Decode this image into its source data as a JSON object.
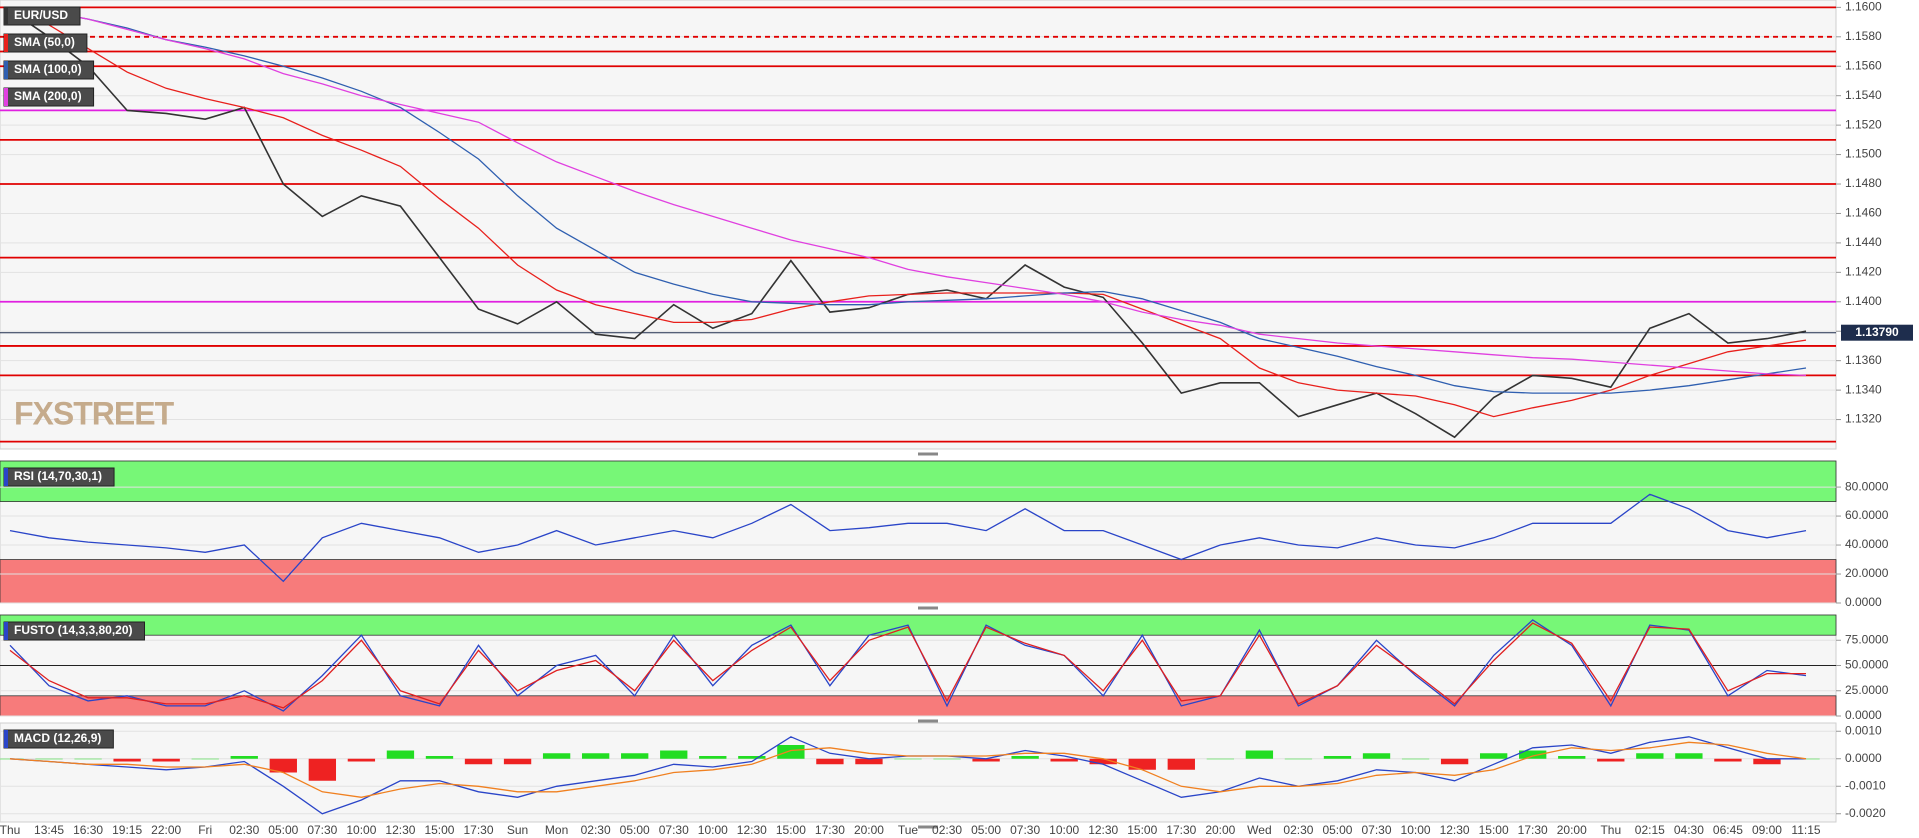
{
  "chart_data": [
    {
      "type": "line",
      "ylim": [
        1.13,
        1.1605
      ],
      "yticks": [
        {
          "value": 1.16,
          "label": "1.1600"
        },
        {
          "value": 1.158,
          "label": "1.1580"
        },
        {
          "value": 1.156,
          "label": "1.1560"
        },
        {
          "value": 1.154,
          "label": "1.1540"
        },
        {
          "value": 1.152,
          "label": "1.1520"
        },
        {
          "value": 1.15,
          "label": "1.1500"
        },
        {
          "value": 1.148,
          "label": "1.1480"
        },
        {
          "value": 1.146,
          "label": "1.1460"
        },
        {
          "value": 1.144,
          "label": "1.1440"
        },
        {
          "value": 1.142,
          "label": "1.1420"
        },
        {
          "value": 1.14,
          "label": "1.1400"
        },
        {
          "value": 1.138,
          "label": "1.1380"
        },
        {
          "value": 1.136,
          "label": "1.1360"
        },
        {
          "value": 1.134,
          "label": "1.1340"
        },
        {
          "value": 1.132,
          "label": "1.1320"
        }
      ],
      "grid": true,
      "watermark": "FXSTREET",
      "last_price": {
        "value": 1.1379,
        "label": "1.13790",
        "color": "#1e2d4d"
      },
      "levels": [
        {
          "value": 1.16,
          "color": "#e00000"
        },
        {
          "value": 1.158,
          "color": "#e00000",
          "style": "dashed"
        },
        {
          "value": 1.157,
          "color": "#e00000"
        },
        {
          "value": 1.156,
          "color": "#e00000"
        },
        {
          "value": 1.153,
          "color": "#e020e0"
        },
        {
          "value": 1.151,
          "color": "#e00000"
        },
        {
          "value": 1.148,
          "color": "#e00000"
        },
        {
          "value": 1.143,
          "color": "#e00000"
        },
        {
          "value": 1.14,
          "color": "#e020e0"
        },
        {
          "value": 1.137,
          "color": "#e00000"
        },
        {
          "value": 1.135,
          "color": "#e00000"
        },
        {
          "value": 1.1305,
          "color": "#e00000"
        }
      ],
      "series": [
        {
          "name": "EUR/USD",
          "color": "#333333",
          "values": [
            1.1598,
            1.158,
            1.156,
            1.153,
            1.1528,
            1.1524,
            1.1532,
            1.148,
            1.1458,
            1.1472,
            1.1465,
            1.143,
            1.1395,
            1.1385,
            1.14,
            1.1378,
            1.1375,
            1.1398,
            1.1382,
            1.1392,
            1.1428,
            1.1393,
            1.1396,
            1.1405,
            1.1408,
            1.1402,
            1.1425,
            1.141,
            1.1403,
            1.1372,
            1.1338,
            1.1345,
            1.1345,
            1.1322,
            1.133,
            1.1338,
            1.1324,
            1.1308,
            1.1335,
            1.135,
            1.1348,
            1.1342,
            1.1382,
            1.1392,
            1.1372,
            1.1375,
            1.138
          ]
        },
        {
          "name": "SMA (50,0)",
          "color": "#e8201c",
          "values": [
            1.1595,
            1.1588,
            1.1572,
            1.1556,
            1.1545,
            1.1538,
            1.1532,
            1.1525,
            1.1513,
            1.1503,
            1.1492,
            1.147,
            1.145,
            1.1425,
            1.1408,
            1.1398,
            1.1392,
            1.1386,
            1.1386,
            1.1388,
            1.1395,
            1.14,
            1.1404,
            1.1405,
            1.1406,
            1.1406,
            1.1406,
            1.1406,
            1.1405,
            1.1395,
            1.1385,
            1.1375,
            1.1355,
            1.1345,
            1.134,
            1.1338,
            1.1336,
            1.133,
            1.1322,
            1.1328,
            1.1333,
            1.134,
            1.135,
            1.1358,
            1.1366,
            1.137,
            1.1374
          ]
        },
        {
          "name": "SMA (100,0)",
          "color": "#2f5fb0",
          "values": [
            1.16,
            1.1597,
            1.1592,
            1.1586,
            1.1578,
            1.1573,
            1.1567,
            1.156,
            1.1552,
            1.1543,
            1.1532,
            1.1515,
            1.1497,
            1.1472,
            1.145,
            1.1435,
            1.142,
            1.1412,
            1.1405,
            1.14,
            1.1399,
            1.1398,
            1.1398,
            1.14,
            1.1401,
            1.1402,
            1.1404,
            1.1406,
            1.1407,
            1.1402,
            1.1394,
            1.1386,
            1.1375,
            1.1369,
            1.1363,
            1.1356,
            1.135,
            1.1343,
            1.1339,
            1.1338,
            1.1338,
            1.1338,
            1.134,
            1.1343,
            1.1347,
            1.1351,
            1.1355
          ]
        },
        {
          "name": "SMA (200,0)",
          "color": "#e040e0",
          "values": [
            1.16,
            1.1597,
            1.1592,
            1.1585,
            1.1578,
            1.1572,
            1.1565,
            1.1555,
            1.1548,
            1.154,
            1.1534,
            1.1528,
            1.1522,
            1.1508,
            1.1495,
            1.1485,
            1.1475,
            1.1466,
            1.1458,
            1.145,
            1.1442,
            1.1436,
            1.143,
            1.1422,
            1.1417,
            1.1413,
            1.1409,
            1.1405,
            1.14,
            1.1393,
            1.1388,
            1.1384,
            1.1378,
            1.1375,
            1.1372,
            1.137,
            1.1368,
            1.1366,
            1.1364,
            1.1362,
            1.1361,
            1.1359,
            1.1357,
            1.1355,
            1.1353,
            1.1351,
            1.135
          ]
        }
      ]
    },
    {
      "type": "line",
      "title": "RSI (14,70,30,1)",
      "ylim": [
        0,
        98
      ],
      "yticks": [
        {
          "value": 0,
          "label": "0.0000"
        },
        {
          "value": 20,
          "label": "20.0000"
        },
        {
          "value": 40,
          "label": "40.0000"
        },
        {
          "value": 60,
          "label": "60.0000"
        },
        {
          "value": 80,
          "label": "80.0000"
        }
      ],
      "grid": true,
      "upper_band": 70,
      "upper_color": "#77f777",
      "lower_band": 30,
      "lower_color": "#f77b7b",
      "series": [
        {
          "color": "#2a45c8",
          "values": [
            50,
            45,
            42,
            40,
            38,
            35,
            40,
            15,
            45,
            55,
            50,
            45,
            35,
            40,
            50,
            40,
            45,
            50,
            45,
            55,
            68,
            50,
            52,
            55,
            55,
            50,
            65,
            50,
            50,
            40,
            30,
            40,
            45,
            40,
            38,
            45,
            40,
            38,
            45,
            55,
            55,
            55,
            75,
            65,
            50,
            45,
            50
          ]
        }
      ]
    },
    {
      "type": "line",
      "title": "FUSTO (14,3,3,80,20)",
      "ylim": [
        0,
        100
      ],
      "yticks": [
        {
          "value": 0,
          "label": "0.0000"
        },
        {
          "value": 25,
          "label": "25.0000"
        },
        {
          "value": 50,
          "label": "50.0000"
        },
        {
          "value": 75,
          "label": "75.0000"
        }
      ],
      "grid": true,
      "midline": 50,
      "upper_band": 80,
      "upper_color": "#77f777",
      "lower_band": 20,
      "lower_color": "#f77b7b",
      "series": [
        {
          "color": "#2a45c8",
          "values": [
            70,
            30,
            15,
            20,
            10,
            10,
            25,
            5,
            40,
            80,
            20,
            10,
            70,
            20,
            50,
            60,
            20,
            80,
            30,
            70,
            90,
            30,
            80,
            90,
            10,
            90,
            70,
            60,
            20,
            80,
            10,
            20,
            85,
            10,
            30,
            75,
            40,
            10,
            60,
            95,
            70,
            10,
            90,
            85,
            20,
            45,
            40
          ]
        },
        {
          "color": "#e02020",
          "values": [
            65,
            35,
            18,
            18,
            12,
            12,
            20,
            8,
            35,
            75,
            25,
            12,
            65,
            25,
            45,
            55,
            25,
            75,
            35,
            65,
            88,
            35,
            75,
            88,
            15,
            88,
            72,
            60,
            25,
            75,
            15,
            20,
            80,
            12,
            30,
            70,
            42,
            12,
            55,
            92,
            72,
            15,
            88,
            86,
            25,
            42,
            42
          ]
        }
      ]
    },
    {
      "type": "line",
      "title": "MACD (12,26,9)",
      "ylim": [
        -0.0023,
        0.0013
      ],
      "yticks": [
        {
          "value": 0.001,
          "label": "0.0010"
        },
        {
          "value": 0,
          "label": "0.0000"
        },
        {
          "value": -0.001,
          "label": "-0.0010"
        },
        {
          "value": -0.002,
          "label": "-0.0020"
        }
      ],
      "grid": true,
      "histogram": {
        "up_color": "#22dd22",
        "down_color": "#ee2222",
        "values": [
          0,
          0,
          0,
          -0.0001,
          -0.0001,
          0,
          0.0001,
          -0.0005,
          -0.0008,
          -0.0001,
          0.0003,
          0.0001,
          -0.0002,
          -0.0002,
          0.0002,
          0.0002,
          0.0002,
          0.0003,
          0.0001,
          0.0001,
          0.0005,
          -0.0002,
          -0.0002,
          0,
          0,
          -0.0001,
          0.0001,
          -0.0001,
          -0.0002,
          -0.0004,
          -0.0004,
          0,
          0.0003,
          0,
          0.0001,
          0.0002,
          0,
          -0.0002,
          0.0002,
          0.0003,
          0.0001,
          -0.0001,
          0.0002,
          0.0002,
          -0.0001,
          -0.0002,
          0
        ]
      },
      "series": [
        {
          "color": "#2a45c8",
          "values": [
            0,
            -0.0001,
            -0.0002,
            -0.0003,
            -0.0004,
            -0.0003,
            -0.0001,
            -0.001,
            -0.002,
            -0.0015,
            -0.0008,
            -0.0008,
            -0.0012,
            -0.0014,
            -0.001,
            -0.0008,
            -0.0006,
            -0.0002,
            -0.0003,
            -0.0001,
            0.0008,
            0.0002,
            0,
            0.0001,
            0.0001,
            0,
            0.0003,
            0.0001,
            -0.0002,
            -0.0008,
            -0.0014,
            -0.0012,
            -0.0007,
            -0.001,
            -0.0008,
            -0.0004,
            -0.0005,
            -0.0008,
            -0.0002,
            0.0004,
            0.0005,
            0.0002,
            0.0006,
            0.0008,
            0.0004,
            0,
            0
          ]
        },
        {
          "color": "#f08020",
          "values": [
            0,
            -0.0001,
            -0.0002,
            -0.0002,
            -0.0003,
            -0.0003,
            -0.0002,
            -0.0005,
            -0.0012,
            -0.0014,
            -0.0011,
            -0.0009,
            -0.001,
            -0.0012,
            -0.0012,
            -0.001,
            -0.0008,
            -0.0005,
            -0.0004,
            -0.0002,
            0.0003,
            0.0004,
            0.0002,
            0.0001,
            0.0001,
            0.0001,
            0.0002,
            0.0002,
            0,
            -0.0004,
            -0.001,
            -0.0012,
            -0.001,
            -0.001,
            -0.0009,
            -0.0006,
            -0.0005,
            -0.0006,
            -0.0004,
            0.0001,
            0.0004,
            0.0003,
            0.0004,
            0.0006,
            0.0005,
            0.0002,
            0
          ]
        }
      ],
      "categories": [
        "Thu",
        "13:45",
        "16:30",
        "19:15",
        "22:00",
        "Fri",
        "02:30",
        "05:00",
        "07:30",
        "10:00",
        "12:30",
        "15:00",
        "17:30",
        "Sun",
        "Mon",
        "02:30",
        "05:00",
        "07:30",
        "10:00",
        "12:30",
        "15:00",
        "17:30",
        "20:00",
        "Tue",
        "02:30",
        "05:00",
        "07:30",
        "10:00",
        "12:30",
        "15:00",
        "17:30",
        "20:00",
        "Wed",
        "02:30",
        "05:00",
        "07:30",
        "10:00",
        "12:30",
        "15:00",
        "17:30",
        "20:00",
        "Thu",
        "02:15",
        "04:30",
        "06:45",
        "09:00",
        "11:15"
      ]
    }
  ]
}
